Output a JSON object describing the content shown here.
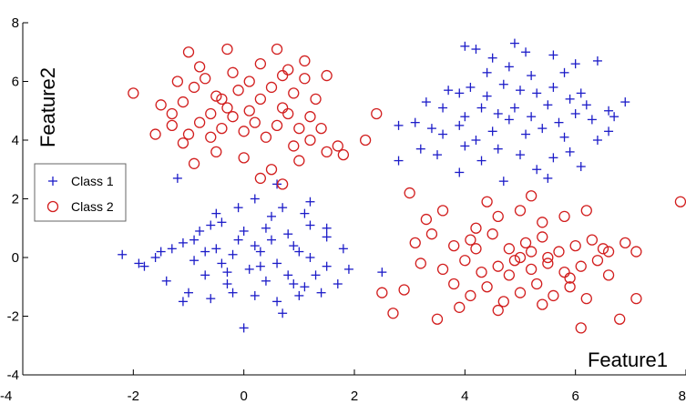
{
  "chart_data": {
    "type": "scatter",
    "title": "",
    "xlabel": "Feature1",
    "ylabel": "Feature2",
    "xlim": [
      -4,
      8
    ],
    "ylim": [
      -4,
      8
    ],
    "xticks": [
      -4,
      -2,
      0,
      2,
      4,
      6,
      8
    ],
    "yticks": [
      -4,
      -2,
      0,
      2,
      4,
      6,
      8
    ],
    "grid": false,
    "legend": "left",
    "series": [
      {
        "name": "Class 1",
        "marker": "plus",
        "color": "#1c1cc8",
        "points": [
          [
            4.0,
            7.2
          ],
          [
            4.2,
            7.1
          ],
          [
            4.9,
            7.3
          ],
          [
            5.1,
            7.0
          ],
          [
            5.6,
            6.9
          ],
          [
            6.0,
            6.6
          ],
          [
            6.4,
            6.7
          ],
          [
            5.8,
            6.3
          ],
          [
            4.5,
            6.8
          ],
          [
            3.7,
            5.7
          ],
          [
            3.9,
            5.6
          ],
          [
            4.1,
            5.8
          ],
          [
            4.4,
            5.5
          ],
          [
            4.7,
            5.9
          ],
          [
            5.0,
            5.7
          ],
          [
            5.3,
            5.6
          ],
          [
            5.6,
            5.8
          ],
          [
            5.9,
            5.4
          ],
          [
            6.2,
            5.2
          ],
          [
            6.6,
            5.0
          ],
          [
            6.9,
            5.3
          ],
          [
            6.7,
            4.8
          ],
          [
            2.8,
            4.5
          ],
          [
            3.1,
            4.6
          ],
          [
            3.4,
            4.4
          ],
          [
            3.6,
            4.2
          ],
          [
            3.9,
            4.5
          ],
          [
            4.2,
            4.0
          ],
          [
            4.5,
            4.3
          ],
          [
            4.8,
            4.7
          ],
          [
            5.1,
            4.2
          ],
          [
            5.4,
            4.4
          ],
          [
            5.7,
            4.6
          ],
          [
            6.0,
            4.9
          ],
          [
            6.3,
            4.7
          ],
          [
            6.6,
            4.3
          ],
          [
            3.2,
            3.7
          ],
          [
            3.5,
            3.5
          ],
          [
            4.0,
            3.8
          ],
          [
            4.3,
            3.3
          ],
          [
            4.6,
            3.7
          ],
          [
            5.0,
            3.5
          ],
          [
            5.3,
            3.0
          ],
          [
            5.6,
            3.4
          ],
          [
            5.9,
            3.6
          ],
          [
            6.1,
            3.1
          ],
          [
            3.9,
            2.9
          ],
          [
            4.7,
            2.6
          ],
          [
            5.5,
            2.7
          ],
          [
            2.8,
            3.3
          ],
          [
            3.6,
            5.1
          ],
          [
            4.3,
            5.1
          ],
          [
            4.9,
            5.1
          ],
          [
            5.5,
            5.2
          ],
          [
            6.1,
            5.6
          ],
          [
            5.2,
            4.8
          ],
          [
            4.6,
            4.9
          ],
          [
            4.0,
            4.8
          ],
          [
            5.8,
            4.1
          ],
          [
            4.4,
            6.3
          ],
          [
            5.2,
            6.2
          ],
          [
            4.8,
            6.5
          ],
          [
            3.3,
            5.3
          ],
          [
            6.4,
            4.0
          ],
          [
            -0.9,
            -0.1
          ],
          [
            -0.5,
            0.3
          ],
          [
            -0.1,
            0.6
          ],
          [
            0.3,
            0.2
          ],
          [
            0.6,
            -0.2
          ],
          [
            0.9,
            0.4
          ],
          [
            1.2,
            0.0
          ],
          [
            1.5,
            -0.3
          ],
          [
            -0.7,
            -0.6
          ],
          [
            -0.3,
            -0.9
          ],
          [
            0.1,
            -0.4
          ],
          [
            0.4,
            -0.8
          ],
          [
            0.8,
            -0.6
          ],
          [
            1.1,
            -1.0
          ],
          [
            -1.1,
            0.5
          ],
          [
            -0.8,
            0.9
          ],
          [
            -0.4,
            1.2
          ],
          [
            0.0,
            0.9
          ],
          [
            0.4,
            1.0
          ],
          [
            0.8,
            0.8
          ],
          [
            1.2,
            1.1
          ],
          [
            1.5,
            0.7
          ],
          [
            1.8,
            0.3
          ],
          [
            -1.5,
            0.2
          ],
          [
            -1.8,
            -0.3
          ],
          [
            -2.2,
            0.1
          ],
          [
            -1.4,
            -0.8
          ],
          [
            -1.0,
            -1.2
          ],
          [
            -0.6,
            -1.4
          ],
          [
            -0.2,
            -1.2
          ],
          [
            0.2,
            -1.3
          ],
          [
            0.6,
            -1.5
          ],
          [
            1.0,
            -1.3
          ],
          [
            1.4,
            -1.2
          ],
          [
            1.7,
            -0.9
          ],
          [
            -0.5,
            1.5
          ],
          [
            0.2,
            2.0
          ],
          [
            0.7,
            1.7
          ],
          [
            1.1,
            1.5
          ],
          [
            -0.1,
            1.7
          ],
          [
            0.5,
            1.4
          ],
          [
            -1.6,
            0.0
          ],
          [
            -1.3,
            0.3
          ],
          [
            -0.9,
            0.6
          ],
          [
            0.9,
            -0.9
          ],
          [
            0.3,
            -0.3
          ],
          [
            -0.2,
            0.1
          ],
          [
            0.0,
            -2.4
          ],
          [
            -1.1,
            -1.5
          ],
          [
            0.7,
            -1.9
          ],
          [
            1.5,
            1.0
          ],
          [
            -0.6,
            1.1
          ],
          [
            1.2,
            1.9
          ],
          [
            -1.2,
            2.7
          ],
          [
            0.6,
            2.5
          ],
          [
            -0.3,
            -0.5
          ],
          [
            0.5,
            0.6
          ],
          [
            1.9,
            -0.4
          ],
          [
            -0.7,
            0.2
          ],
          [
            0.2,
            0.4
          ],
          [
            -0.4,
            -0.2
          ],
          [
            1.0,
            0.2
          ],
          [
            2.5,
            -0.5
          ],
          [
            1.3,
            -0.6
          ],
          [
            -1.9,
            -0.2
          ]
        ]
      },
      {
        "name": "Class 2",
        "marker": "circle",
        "color": "#d21e1e",
        "points": [
          [
            -2.0,
            5.6
          ],
          [
            -1.6,
            4.2
          ],
          [
            -1.3,
            4.9
          ],
          [
            -1.1,
            5.3
          ],
          [
            -0.9,
            5.8
          ],
          [
            -0.7,
            6.1
          ],
          [
            -0.5,
            5.5
          ],
          [
            -0.3,
            5.1
          ],
          [
            -0.1,
            5.7
          ],
          [
            0.1,
            6.0
          ],
          [
            0.3,
            5.4
          ],
          [
            0.5,
            5.8
          ],
          [
            0.7,
            6.2
          ],
          [
            0.9,
            5.6
          ],
          [
            1.1,
            6.1
          ],
          [
            1.3,
            5.4
          ],
          [
            1.5,
            6.2
          ],
          [
            -1.0,
            7.0
          ],
          [
            -0.3,
            7.1
          ],
          [
            0.6,
            7.1
          ],
          [
            1.1,
            6.7
          ],
          [
            -1.2,
            6.0
          ],
          [
            -0.8,
            6.5
          ],
          [
            -0.2,
            6.3
          ],
          [
            0.3,
            6.6
          ],
          [
            0.8,
            6.4
          ],
          [
            -1.5,
            5.2
          ],
          [
            -1.3,
            4.5
          ],
          [
            -1.0,
            4.2
          ],
          [
            -0.8,
            4.6
          ],
          [
            -0.6,
            4.1
          ],
          [
            -0.4,
            4.4
          ],
          [
            -0.2,
            4.8
          ],
          [
            0.0,
            4.3
          ],
          [
            0.2,
            4.6
          ],
          [
            0.4,
            4.1
          ],
          [
            0.6,
            4.5
          ],
          [
            0.8,
            4.9
          ],
          [
            1.0,
            4.4
          ],
          [
            1.2,
            4.0
          ],
          [
            1.4,
            4.4
          ],
          [
            1.7,
            3.8
          ],
          [
            -0.9,
            3.2
          ],
          [
            -0.5,
            3.6
          ],
          [
            0.0,
            3.4
          ],
          [
            0.5,
            3.0
          ],
          [
            1.0,
            3.3
          ],
          [
            1.5,
            3.6
          ],
          [
            0.3,
            2.7
          ],
          [
            0.7,
            2.5
          ],
          [
            1.8,
            3.5
          ],
          [
            2.2,
            4.0
          ],
          [
            2.4,
            4.9
          ],
          [
            -0.6,
            4.9
          ],
          [
            0.1,
            5.0
          ],
          [
            -0.4,
            5.4
          ],
          [
            0.7,
            5.1
          ],
          [
            1.2,
            4.8
          ],
          [
            -1.1,
            3.9
          ],
          [
            0.9,
            3.8
          ],
          [
            3.0,
            2.2
          ],
          [
            3.6,
            1.6
          ],
          [
            4.2,
            1.0
          ],
          [
            4.6,
            1.4
          ],
          [
            5.0,
            1.6
          ],
          [
            5.4,
            1.2
          ],
          [
            5.8,
            1.4
          ],
          [
            6.2,
            1.6
          ],
          [
            5.2,
            2.1
          ],
          [
            4.4,
            1.9
          ],
          [
            3.4,
            0.8
          ],
          [
            3.8,
            0.4
          ],
          [
            4.1,
            0.6
          ],
          [
            4.5,
            0.8
          ],
          [
            4.8,
            0.3
          ],
          [
            5.1,
            0.5
          ],
          [
            5.4,
            0.7
          ],
          [
            5.7,
            0.2
          ],
          [
            6.0,
            0.4
          ],
          [
            6.3,
            0.6
          ],
          [
            6.6,
            0.2
          ],
          [
            6.9,
            0.5
          ],
          [
            7.1,
            0.2
          ],
          [
            3.2,
            -0.2
          ],
          [
            3.6,
            -0.4
          ],
          [
            4.0,
            -0.1
          ],
          [
            4.3,
            -0.5
          ],
          [
            4.6,
            -0.3
          ],
          [
            4.9,
            -0.1
          ],
          [
            5.2,
            -0.4
          ],
          [
            5.5,
            -0.2
          ],
          [
            5.8,
            -0.5
          ],
          [
            6.1,
            -0.3
          ],
          [
            6.4,
            -0.1
          ],
          [
            3.8,
            -0.9
          ],
          [
            4.1,
            -1.3
          ],
          [
            4.4,
            -1.0
          ],
          [
            4.7,
            -1.5
          ],
          [
            5.0,
            -1.2
          ],
          [
            5.3,
            -0.9
          ],
          [
            5.6,
            -1.3
          ],
          [
            5.9,
            -1.0
          ],
          [
            6.2,
            -1.4
          ],
          [
            3.9,
            -1.7
          ],
          [
            4.6,
            -1.8
          ],
          [
            5.4,
            -1.6
          ],
          [
            6.1,
            -2.4
          ],
          [
            3.5,
            -2.1
          ],
          [
            2.7,
            -1.9
          ],
          [
            2.5,
            -1.2
          ],
          [
            2.9,
            -1.1
          ],
          [
            6.8,
            -2.1
          ],
          [
            7.1,
            -1.4
          ],
          [
            3.1,
            0.5
          ],
          [
            5.0,
            0.0
          ],
          [
            5.2,
            0.2
          ],
          [
            5.5,
            0.0
          ],
          [
            4.8,
            -0.6
          ],
          [
            5.9,
            -0.7
          ],
          [
            6.6,
            -0.6
          ],
          [
            4.2,
            0.3
          ],
          [
            3.3,
            1.3
          ],
          [
            7.9,
            1.9
          ],
          [
            6.5,
            0.3
          ]
        ]
      }
    ]
  }
}
